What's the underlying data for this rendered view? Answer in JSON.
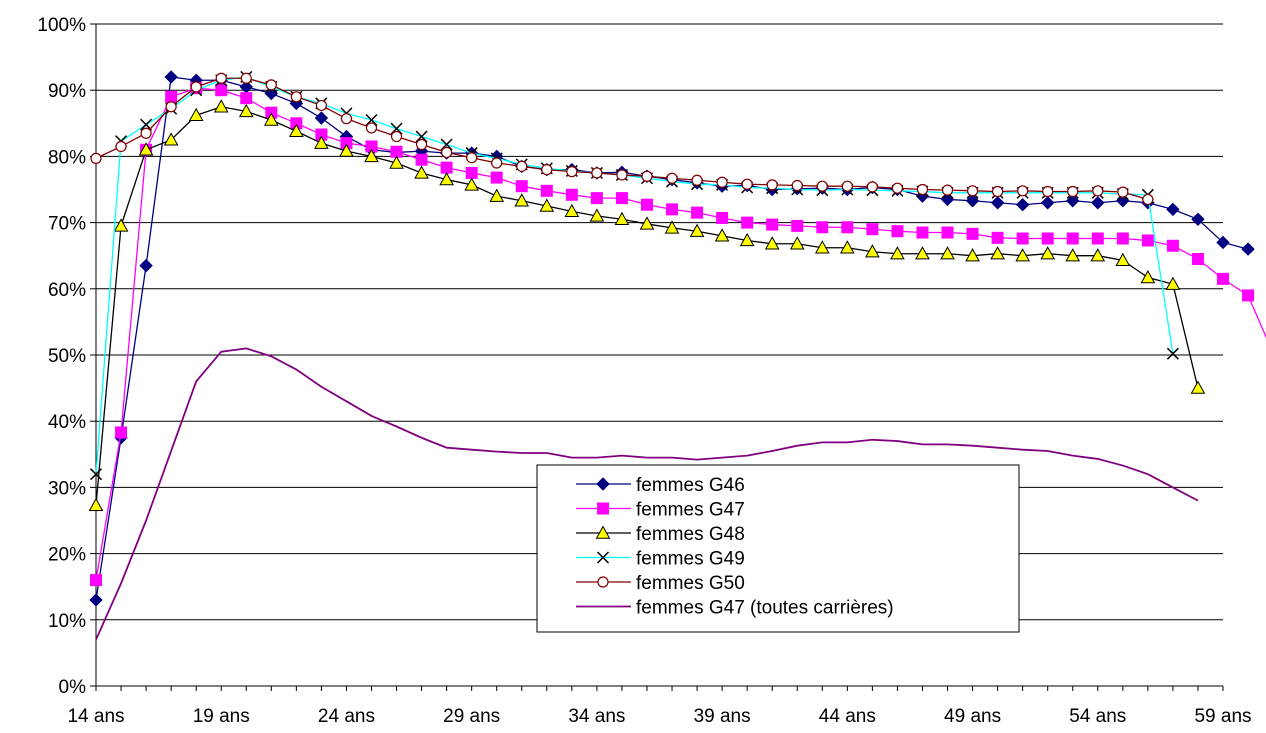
{
  "chart_data": {
    "type": "line",
    "title": "",
    "xlabel": "",
    "ylabel": "",
    "ylim": [
      0,
      1
    ],
    "x_range": [
      14,
      59
    ],
    "x_ticks": [
      {
        "value": 14,
        "label": "14 ans"
      },
      {
        "value": 19,
        "label": "19 ans"
      },
      {
        "value": 24,
        "label": "24 ans"
      },
      {
        "value": 29,
        "label": "29 ans"
      },
      {
        "value": 34,
        "label": "34 ans"
      },
      {
        "value": 39,
        "label": "39 ans"
      },
      {
        "value": 44,
        "label": "44 ans"
      },
      {
        "value": 49,
        "label": "49 ans"
      },
      {
        "value": 54,
        "label": "54 ans"
      },
      {
        "value": 59,
        "label": "59 ans"
      }
    ],
    "y_ticks": [
      {
        "value": 0.0,
        "label": "0%"
      },
      {
        "value": 0.1,
        "label": "10%"
      },
      {
        "value": 0.2,
        "label": "20%"
      },
      {
        "value": 0.3,
        "label": "30%"
      },
      {
        "value": 0.4,
        "label": "40%"
      },
      {
        "value": 0.5,
        "label": "50%"
      },
      {
        "value": 0.6,
        "label": "60%"
      },
      {
        "value": 0.7,
        "label": "70%"
      },
      {
        "value": 0.8,
        "label": "80%"
      },
      {
        "value": 0.9,
        "label": "90%"
      },
      {
        "value": 1.0,
        "label": "100%"
      }
    ],
    "grid": "horizontal",
    "legend_position": "bottom-center",
    "series": [
      {
        "name": "femmes G46",
        "color": "#000080",
        "marker": "diamond",
        "x_start": 14,
        "values": [
          0.13,
          0.375,
          0.635,
          0.92,
          0.915,
          0.915,
          0.905,
          0.895,
          0.88,
          0.858,
          0.83,
          0.81,
          0.806,
          0.808,
          0.805,
          0.805,
          0.8,
          0.785,
          0.78,
          0.78,
          0.775,
          0.776,
          0.77,
          0.765,
          0.76,
          0.755,
          0.756,
          0.75,
          0.751,
          0.752,
          0.75,
          0.753,
          0.75,
          0.74,
          0.735,
          0.733,
          0.73,
          0.727,
          0.73,
          0.733,
          0.73,
          0.733,
          0.73,
          0.72,
          0.705,
          0.67,
          0.66
        ]
      },
      {
        "name": "femmes G47",
        "color": "#ff00ff",
        "marker": "square",
        "x_start": 14,
        "values": [
          0.16,
          0.383,
          0.81,
          0.89,
          0.903,
          0.9,
          0.888,
          0.866,
          0.85,
          0.833,
          0.82,
          0.815,
          0.807,
          0.795,
          0.783,
          0.775,
          0.768,
          0.755,
          0.748,
          0.742,
          0.737,
          0.737,
          0.727,
          0.72,
          0.715,
          0.707,
          0.7,
          0.697,
          0.695,
          0.693,
          0.693,
          0.69,
          0.687,
          0.685,
          0.685,
          0.683,
          0.677,
          0.676,
          0.676,
          0.676,
          0.676,
          0.676,
          0.673,
          0.665,
          0.645,
          0.615,
          0.59,
          0.503
        ]
      },
      {
        "name": "femmes G48",
        "color": "#000000",
        "fill": "#ffff00",
        "marker": "triangle",
        "x_start": 14,
        "values": [
          0.273,
          0.695,
          0.81,
          0.825,
          0.862,
          0.875,
          0.868,
          0.855,
          0.838,
          0.82,
          0.808,
          0.8,
          0.79,
          0.775,
          0.765,
          0.757,
          0.74,
          0.733,
          0.725,
          0.717,
          0.71,
          0.705,
          0.698,
          0.692,
          0.687,
          0.68,
          0.673,
          0.668,
          0.668,
          0.662,
          0.662,
          0.656,
          0.653,
          0.653,
          0.653,
          0.65,
          0.653,
          0.65,
          0.653,
          0.65,
          0.65,
          0.643,
          0.617,
          0.607,
          0.45
        ]
      },
      {
        "name": "femmes G49",
        "color": "#000000",
        "line_color": "#00ffff",
        "marker": "x",
        "x_start": 14,
        "values": [
          0.32,
          0.823,
          0.848,
          0.872,
          0.9,
          0.915,
          0.92,
          0.905,
          0.89,
          0.88,
          0.865,
          0.855,
          0.842,
          0.83,
          0.818,
          0.805,
          0.797,
          0.788,
          0.782,
          0.778,
          0.775,
          0.772,
          0.767,
          0.762,
          0.758,
          0.757,
          0.753,
          0.752,
          0.75,
          0.749,
          0.75,
          0.749,
          0.748,
          0.747,
          0.745,
          0.745,
          0.745,
          0.745,
          0.745,
          0.745,
          0.745,
          0.743,
          0.742,
          0.502
        ]
      },
      {
        "name": "femmes G50",
        "color": "#800000",
        "fill": "#ffffff",
        "marker": "circle",
        "x_start": 14,
        "values": [
          0.797,
          0.815,
          0.835,
          0.875,
          0.905,
          0.918,
          0.918,
          0.908,
          0.89,
          0.877,
          0.857,
          0.843,
          0.83,
          0.818,
          0.806,
          0.798,
          0.79,
          0.785,
          0.78,
          0.777,
          0.775,
          0.772,
          0.77,
          0.767,
          0.764,
          0.761,
          0.758,
          0.757,
          0.756,
          0.755,
          0.755,
          0.754,
          0.752,
          0.75,
          0.749,
          0.748,
          0.747,
          0.748,
          0.747,
          0.747,
          0.748,
          0.746,
          0.735
        ]
      },
      {
        "name": "femmes G47 (toutes carrières)",
        "color": "#800080",
        "marker": "none",
        "x_start": 14,
        "values": [
          0.07,
          0.155,
          0.25,
          0.355,
          0.46,
          0.505,
          0.51,
          0.498,
          0.478,
          0.452,
          0.43,
          0.408,
          0.392,
          0.375,
          0.36,
          0.357,
          0.354,
          0.352,
          0.352,
          0.345,
          0.345,
          0.348,
          0.345,
          0.345,
          0.342,
          0.345,
          0.348,
          0.355,
          0.363,
          0.368,
          0.368,
          0.372,
          0.37,
          0.365,
          0.365,
          0.363,
          0.36,
          0.357,
          0.355,
          0.348,
          0.343,
          0.333,
          0.32,
          0.3,
          0.28
        ]
      }
    ]
  }
}
